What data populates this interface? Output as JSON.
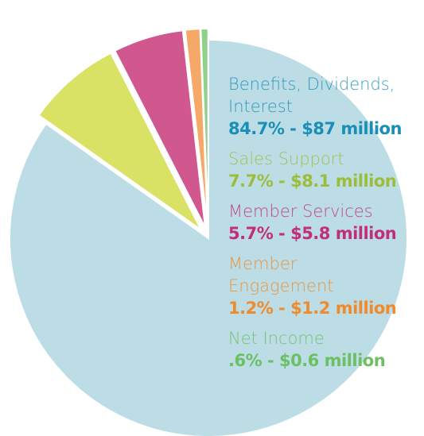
{
  "chart_data": {
    "type": "pie",
    "categories": [
      "Benefits, Dividends, Interest",
      "Sales Support",
      "Member Services",
      "Member Engagement",
      "Net Income"
    ],
    "values": [
      84.7,
      7.7,
      5.7,
      1.2,
      0.6
    ],
    "value_labels": [
      "84.7% - $87 million",
      "7.7% - $8.1 million",
      "5.7% - $5.8 million",
      "1.2% - $1.2 million",
      ".6% - $0.6 million"
    ],
    "colors": [
      "#bcdde6",
      "#d9e264",
      "#d0588f",
      "#f5a868",
      "#8fd18a"
    ],
    "label_colors": [
      "#1a8fb5",
      "#9cbd3a",
      "#c22e7b",
      "#f08a2a",
      "#6cbf63"
    ]
  }
}
